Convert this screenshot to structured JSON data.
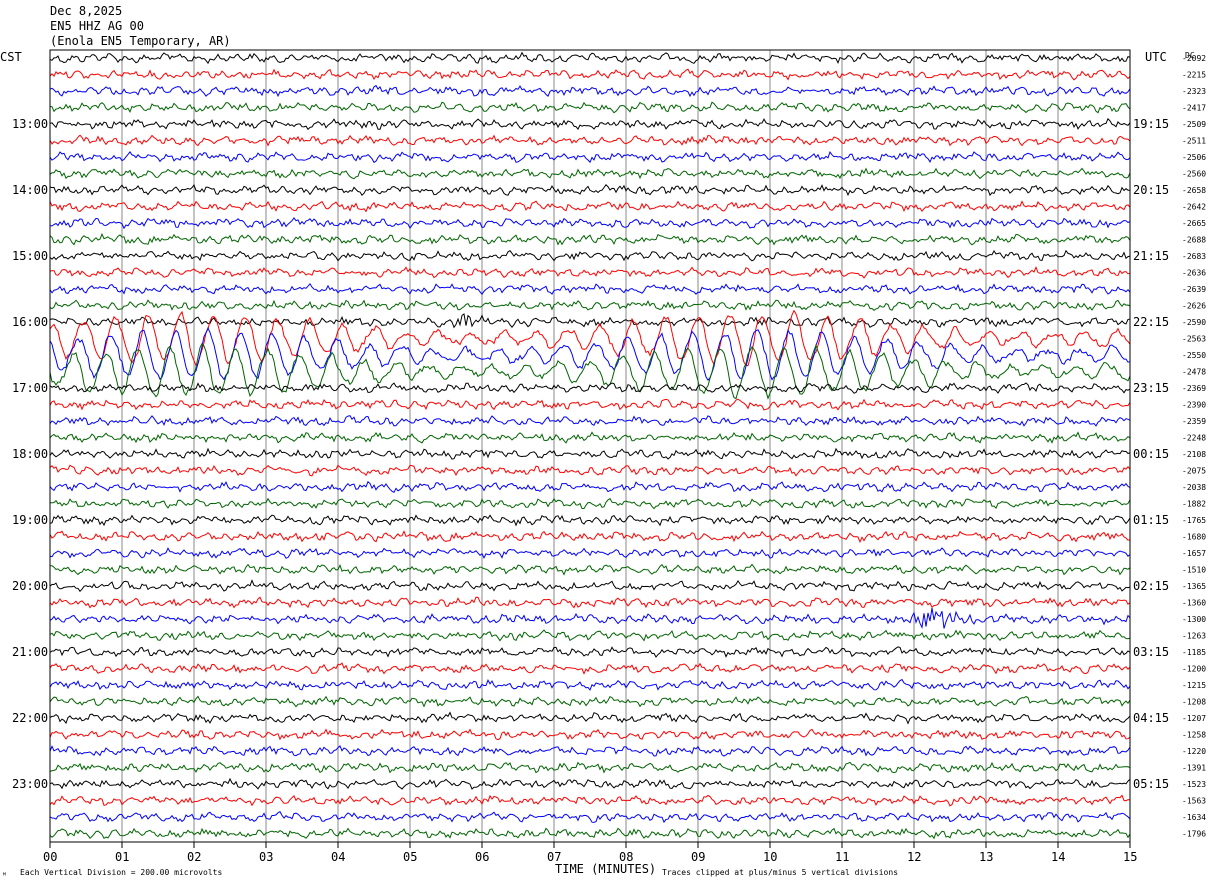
{
  "header": {
    "date": "Dec 8,2025",
    "channel": "EN5 HHZ AG 00",
    "station": "(Enola EN5 Temporary, AR)"
  },
  "axes": {
    "left_label": "CST",
    "right_label": "UTC",
    "right_corner": "DC",
    "xlabel": "TIME (MINUTES)",
    "x_ticks": [
      "00",
      "01",
      "02",
      "03",
      "04",
      "05",
      "06",
      "07",
      "08",
      "09",
      "10",
      "11",
      "12",
      "13",
      "14",
      "15"
    ]
  },
  "footer": {
    "scale_note": "Each Vertical Division =  200.00 microvolts",
    "clip_note": "Traces clipped at plus/minus 5 vertical divisions",
    "corner_mark": "ᴹ"
  },
  "chart_data": {
    "type": "line",
    "title": "",
    "x_range_minutes": [
      0,
      15
    ],
    "trace_minutes": 15,
    "traces_per_hour": 4,
    "trace_colors": [
      "#000000",
      "#ff0000",
      "#0000ff",
      "#006400"
    ],
    "grid": "vertical lines each minute",
    "left_hour_labels": [
      "13:00",
      "14:00",
      "15:00",
      "16:00",
      "17:00",
      "18:00",
      "19:00",
      "20:00",
      "21:00",
      "22:00",
      "23:00"
    ],
    "right_hour_labels": [
      "19:15",
      "20:15",
      "21:15",
      "22:15",
      "23:15",
      "00:15",
      "01:15",
      "02:15",
      "03:15",
      "04:15",
      "05:15"
    ],
    "right_dc_values": [
      "-2092",
      "-2215",
      "-2323",
      "-2417",
      "-2509",
      "-2511",
      "-2506",
      "-2560",
      "-2658",
      "-2642",
      "-2665",
      "-2688",
      "-2683",
      "-2636",
      "-2639",
      "-2626",
      "-2590",
      "-2563",
      "-2550",
      "-2478",
      "-2369",
      "-2390",
      "-2359",
      "-2248",
      "-2108",
      "-2075",
      "-2038",
      "-1882",
      "-1765",
      "-1680",
      "-1657",
      "-1510",
      "-1365",
      "-1360",
      "-1300",
      "-1263",
      "-1185",
      "-1200",
      "-1215",
      "-1208",
      "-1207",
      "-1258",
      "-1220",
      "-1391",
      "-1523",
      "-1563",
      "-1634",
      "-1796"
    ],
    "notable_events": [
      {
        "trace_index": 16,
        "minute": 5.8,
        "note": "short burst"
      },
      {
        "trace_index": 17,
        "minute_range": [
          0,
          15
        ],
        "note": "large clipped long-period oscillation (teleseism)"
      },
      {
        "trace_index": 18,
        "minute_range": [
          0,
          15
        ],
        "note": "large clipped long-period oscillation"
      },
      {
        "trace_index": 19,
        "minute_range": [
          0,
          15
        ],
        "note": "large clipped long-period oscillation"
      },
      {
        "trace_index": 34,
        "minute_range": [
          12.0,
          14.5
        ],
        "note": "local event burst"
      }
    ]
  }
}
